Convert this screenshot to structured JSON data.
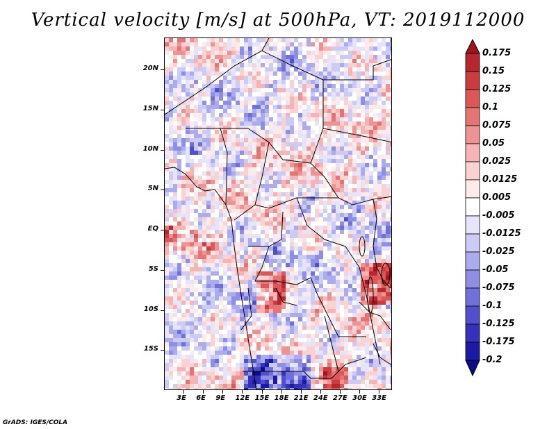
{
  "title": "Vertical velocity [m/s] at 500hPa, VT: 2019112000",
  "credit": "GrADS: IGES/COLA",
  "map": {
    "lon_range": [
      0,
      35
    ],
    "lat_range": [
      -20,
      24
    ],
    "lat_ticks": [
      {
        "value": 20,
        "label": "20N"
      },
      {
        "value": 15,
        "label": "15N"
      },
      {
        "value": 10,
        "label": "10N"
      },
      {
        "value": 5,
        "label": "5N"
      },
      {
        "value": 0,
        "label": "EQ"
      },
      {
        "value": -5,
        "label": "5S"
      },
      {
        "value": -10,
        "label": "10S"
      },
      {
        "value": -15,
        "label": "15S"
      }
    ],
    "lon_ticks": [
      {
        "value": 3,
        "label": "3E"
      },
      {
        "value": 6,
        "label": "6E"
      },
      {
        "value": 9,
        "label": "9E"
      },
      {
        "value": 12,
        "label": "12E"
      },
      {
        "value": 15,
        "label": "15E"
      },
      {
        "value": 18,
        "label": "18E"
      },
      {
        "value": 21,
        "label": "21E"
      },
      {
        "value": 24,
        "label": "24E"
      },
      {
        "value": 27,
        "label": "27E"
      },
      {
        "value": 30,
        "label": "30E"
      },
      {
        "value": 33,
        "label": "33E"
      }
    ]
  },
  "colorbar": {
    "levels": [
      "0.175",
      "0.15",
      "0.125",
      "0.1",
      "0.075",
      "0.05",
      "0.025",
      "0.0125",
      "0.005",
      "-0.005",
      "-0.0125",
      "-0.025",
      "-0.05",
      "-0.075",
      "-0.1",
      "-0.125",
      "-0.175",
      "-0.2"
    ],
    "colors": [
      "#a0141c",
      "#b8262e",
      "#cc3b40",
      "#dc5757",
      "#e67474",
      "#ef9292",
      "#f6b4b4",
      "#fbd2d2",
      "#fdeaea",
      "#ffffff",
      "#e6e4fb",
      "#cccbf6",
      "#ababef",
      "#8e8ee6",
      "#6f70dc",
      "#5050cd",
      "#3232bd",
      "#1a1aa6",
      "#0c0c8c"
    ]
  }
}
